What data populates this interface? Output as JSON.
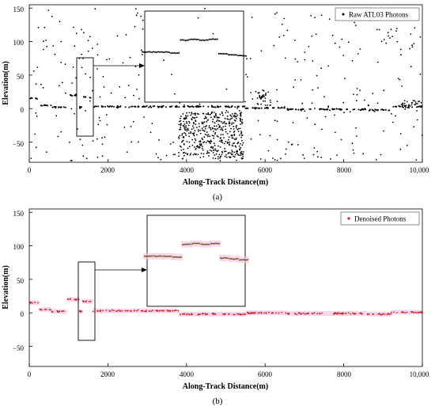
{
  "chart_data": [
    {
      "panel_caption": "(a)",
      "type": "scatter",
      "title": "",
      "xlabel": "Along-Track Distance(m)",
      "ylabel": "Elevation(m)",
      "xlim": [
        0,
        10000
      ],
      "ylim": [
        -80,
        155
      ],
      "x_ticks": [
        0,
        2000,
        4000,
        6000,
        8000,
        10000
      ],
      "x_tick_labels": [
        "0",
        "2000",
        "4000",
        "6000",
        "8000",
        "10,000"
      ],
      "y_ticks": [
        -50,
        0,
        50,
        100,
        150
      ],
      "y_tick_labels": [
        "−50",
        "0",
        "50",
        "100",
        "150"
      ],
      "grid": false,
      "legend_position": "top-right",
      "series": [
        {
          "name": "Raw ATL03 Photons",
          "color": "#000000",
          "segments": [
            {
              "x": [
                0,
                250
              ],
              "y": 15
            },
            {
              "x": [
                250,
                560
              ],
              "y": 5
            },
            {
              "x": [
                560,
                960
              ],
              "y": 2
            },
            {
              "x": [
                960,
                1280
              ],
              "y": 20
            },
            {
              "x": [
                1280,
                1340
              ],
              "y": 2
            },
            {
              "x": [
                1360,
                1620
              ],
              "y": 17
            },
            {
              "x": [
                1620,
                3800
              ],
              "y": 3
            },
            {
              "x": [
                3800,
                5500
              ],
              "y": 3
            },
            {
              "x": [
                5500,
                6550
              ],
              "y": 1
            },
            {
              "x": [
                6550,
                8600
              ],
              "y": -1
            },
            {
              "x": [
                8600,
                9200
              ],
              "y": -2
            },
            {
              "x": [
                9200,
                10000
              ],
              "y": 3
            }
          ],
          "noise_extent": {
            "y": [
              -78,
              150
            ]
          },
          "dense_clusters": [
            {
              "x": [
                3800,
                5450
              ],
              "y": [
                -75,
                -5
              ]
            },
            {
              "x": [
                5800,
                6150
              ],
              "y": [
                5,
                30
              ]
            },
            {
              "x": [
                9450,
                10000
              ],
              "y": [
                0,
                12
              ]
            }
          ]
        }
      ],
      "annotations": [
        {
          "type": "selection-box",
          "x": [
            1200,
            1650
          ],
          "y": [
            -40,
            80
          ]
        },
        {
          "type": "zoom-inset",
          "points": [
            {
              "x": 0.0,
              "y": 0.55
            },
            {
              "x": 0.1,
              "y": 0.55
            },
            {
              "x": 0.2,
              "y": 0.55
            },
            {
              "x": 0.3,
              "y": 0.54
            },
            {
              "x": 0.4,
              "y": 0.68
            },
            {
              "x": 0.5,
              "y": 0.69
            },
            {
              "x": 0.6,
              "y": 0.68
            },
            {
              "x": 0.7,
              "y": 0.69
            },
            {
              "x": 0.8,
              "y": 0.53
            },
            {
              "x": 0.9,
              "y": 0.52
            },
            {
              "x": 1.0,
              "y": 0.51
            }
          ]
        }
      ]
    },
    {
      "panel_caption": "(b)",
      "type": "scatter",
      "title": "",
      "xlabel": "Along-Track Distance(m)",
      "ylabel": "Elevation(m)",
      "xlim": [
        0,
        10000
      ],
      "ylim": [
        -80,
        155
      ],
      "x_ticks": [
        0,
        2000,
        4000,
        6000,
        8000,
        10000
      ],
      "x_tick_labels": [
        "0",
        "2000",
        "4000",
        "6000",
        "8000",
        "10,000"
      ],
      "y_ticks": [
        -50,
        0,
        50,
        100,
        150
      ],
      "y_tick_labels": [
        "−50",
        "0",
        "50",
        "100",
        "150"
      ],
      "grid": false,
      "legend_position": "top-right",
      "series": [
        {
          "name": "Denoised Photons",
          "color": "#cc1f1f",
          "band_color": "#f7c6e6",
          "segments": [
            {
              "x": [
                0,
                250
              ],
              "y": 15
            },
            {
              "x": [
                250,
                560
              ],
              "y": 5
            },
            {
              "x": [
                560,
                960
              ],
              "y": 2
            },
            {
              "x": [
                960,
                1280
              ],
              "y": 20
            },
            {
              "x": [
                1280,
                1340
              ],
              "y": 2
            },
            {
              "x": [
                1360,
                1620
              ],
              "y": 17
            },
            {
              "x": [
                1620,
                3800
              ],
              "y": 3
            },
            {
              "x": [
                3800,
                5500
              ],
              "y": -2
            },
            {
              "x": [
                5500,
                6550
              ],
              "y": 0
            },
            {
              "x": [
                6550,
                8600
              ],
              "y": -1
            },
            {
              "x": [
                8600,
                9200
              ],
              "y": -2
            },
            {
              "x": [
                9200,
                10000
              ],
              "y": 1
            }
          ]
        }
      ],
      "annotations": [
        {
          "type": "selection-box",
          "x": [
            1200,
            1650
          ],
          "y": [
            -40,
            80
          ]
        },
        {
          "type": "zoom-inset",
          "points": [
            {
              "x": 0.0,
              "y": 0.55
            },
            {
              "x": 0.1,
              "y": 0.55
            },
            {
              "x": 0.2,
              "y": 0.55
            },
            {
              "x": 0.3,
              "y": 0.54
            },
            {
              "x": 0.4,
              "y": 0.68
            },
            {
              "x": 0.5,
              "y": 0.69
            },
            {
              "x": 0.6,
              "y": 0.68
            },
            {
              "x": 0.7,
              "y": 0.69
            },
            {
              "x": 0.8,
              "y": 0.53
            },
            {
              "x": 0.9,
              "y": 0.52
            },
            {
              "x": 1.0,
              "y": 0.51
            }
          ]
        }
      ]
    }
  ]
}
